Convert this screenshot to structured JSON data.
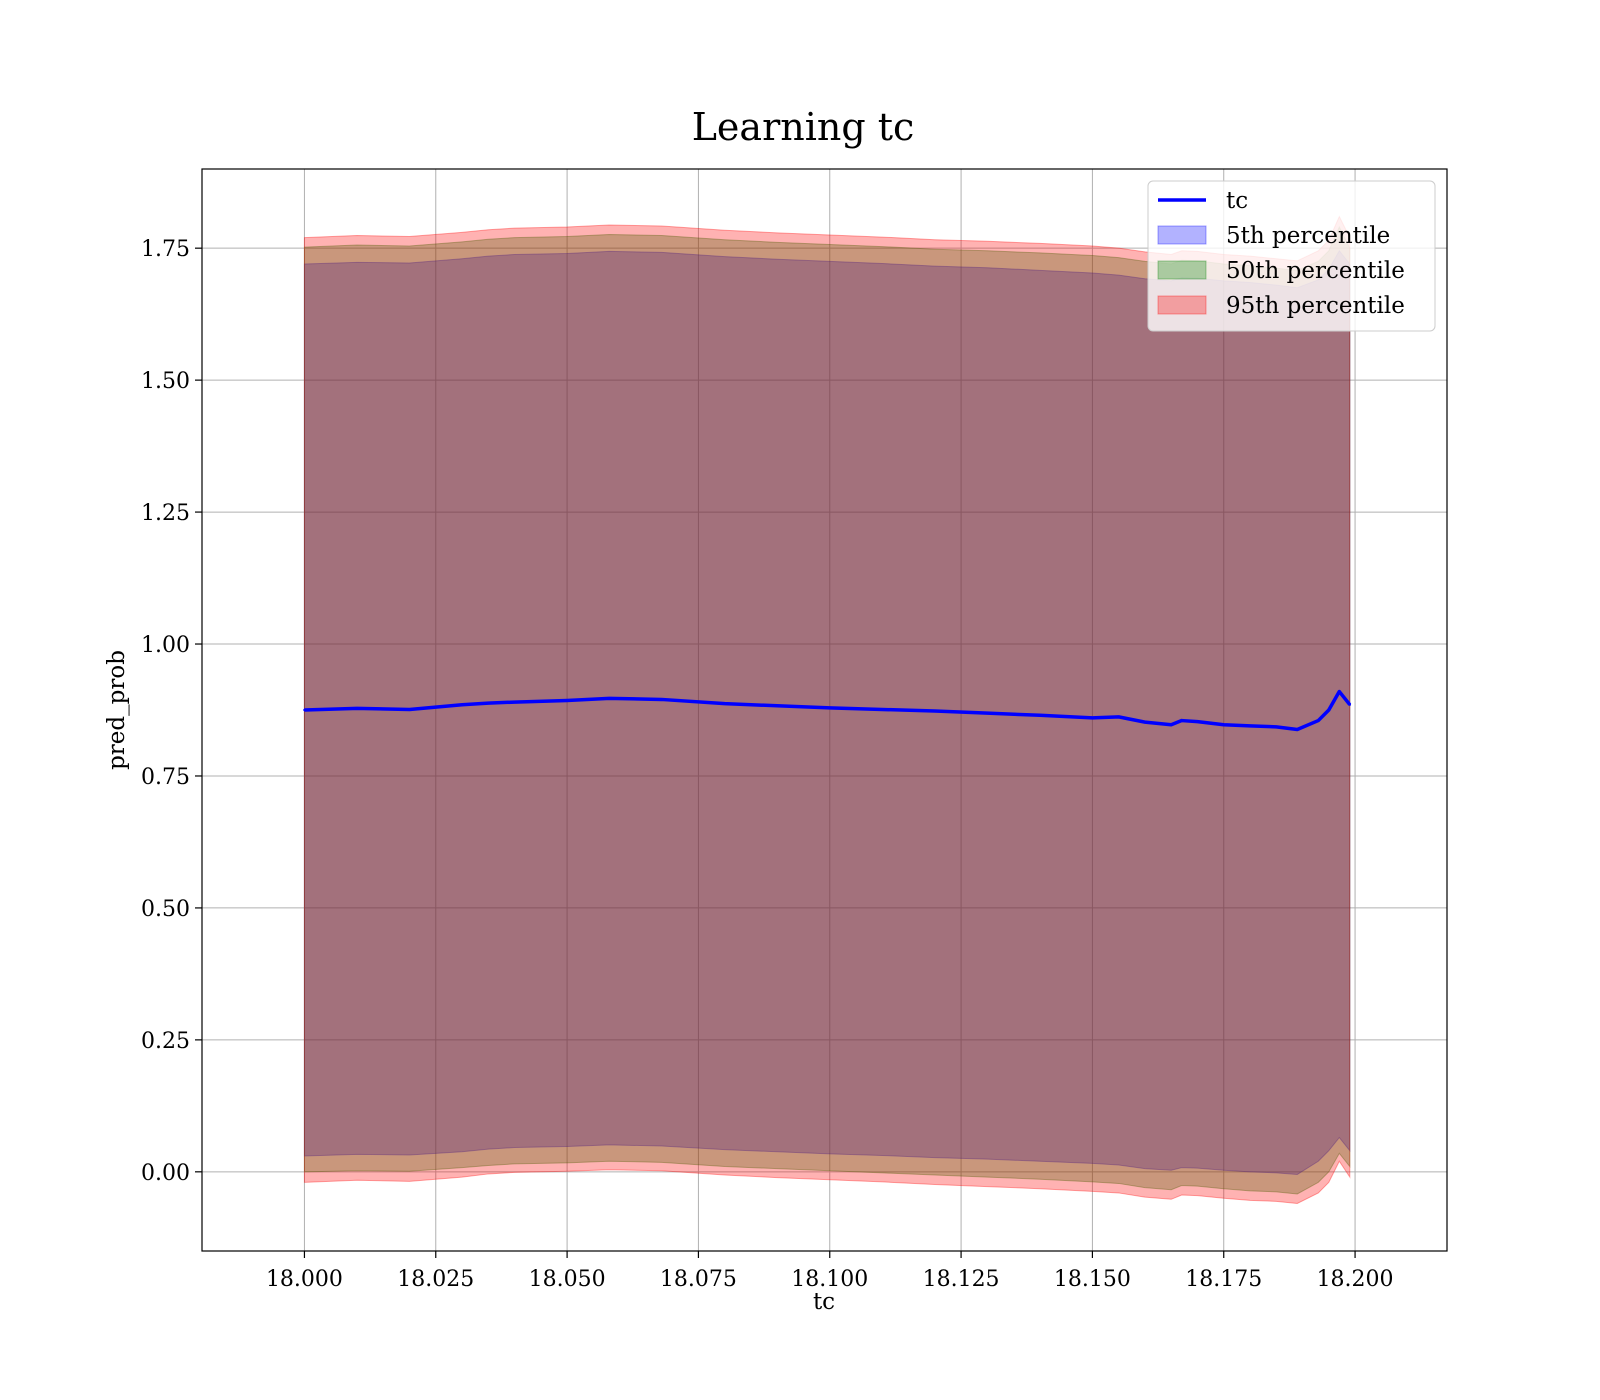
{
  "chart_data": {
    "type": "line",
    "title": "Learning tc",
    "xlabel": "tc",
    "ylabel": "pred_prob",
    "xlim": [
      17.9805,
      18.2175
    ],
    "ylim": [
      -0.15,
      1.9
    ],
    "x_ticks": [
      "18.000",
      "18.025",
      "18.050",
      "18.075",
      "18.100",
      "18.125",
      "18.150",
      "18.175",
      "18.200"
    ],
    "y_ticks": [
      "0.00",
      "0.25",
      "0.50",
      "0.75",
      "1.00",
      "1.25",
      "1.50",
      "1.75"
    ],
    "grid": true,
    "legend_position": "upper right",
    "colors": {
      "line": "#0000ff",
      "band5": "#0000ff",
      "band50": "#008000",
      "band95": "#ff0000"
    },
    "x": [
      18.0,
      18.01,
      18.02,
      18.03,
      18.035,
      18.04,
      18.05,
      18.058,
      18.068,
      18.08,
      18.09,
      18.1,
      18.11,
      18.12,
      18.13,
      18.14,
      18.15,
      18.155,
      18.16,
      18.165,
      18.167,
      18.17,
      18.175,
      18.18,
      18.185,
      18.189,
      18.193,
      18.195,
      18.197,
      18.199
    ],
    "series": [
      {
        "name": "tc",
        "kind": "line",
        "values": [
          0.875,
          0.878,
          0.876,
          0.885,
          0.888,
          0.89,
          0.893,
          0.897,
          0.895,
          0.887,
          0.883,
          0.879,
          0.876,
          0.873,
          0.869,
          0.865,
          0.86,
          0.862,
          0.852,
          0.847,
          0.855,
          0.853,
          0.847,
          0.845,
          0.843,
          0.838,
          0.855,
          0.875,
          0.91,
          0.885
        ]
      },
      {
        "name": "5th percentile",
        "kind": "band",
        "lower": [
          0.03,
          0.033,
          0.032,
          0.038,
          0.043,
          0.046,
          0.048,
          0.051,
          0.049,
          0.042,
          0.038,
          0.034,
          0.031,
          0.027,
          0.024,
          0.02,
          0.016,
          0.013,
          0.006,
          0.003,
          0.008,
          0.007,
          0.003,
          0.0,
          -0.002,
          -0.005,
          0.02,
          0.04,
          0.065,
          0.04
        ],
        "upper": [
          1.72,
          1.723,
          1.722,
          1.73,
          1.735,
          1.738,
          1.74,
          1.744,
          1.742,
          1.734,
          1.729,
          1.725,
          1.721,
          1.716,
          1.713,
          1.708,
          1.703,
          1.699,
          1.692,
          1.688,
          1.694,
          1.693,
          1.688,
          1.685,
          1.68,
          1.675,
          1.69,
          1.71,
          1.745,
          1.72
        ]
      },
      {
        "name": "50th percentile",
        "kind": "band",
        "lower": [
          0.0,
          0.002,
          0.001,
          0.008,
          0.012,
          0.015,
          0.017,
          0.02,
          0.018,
          0.01,
          0.006,
          0.002,
          -0.002,
          -0.006,
          -0.01,
          -0.014,
          -0.019,
          -0.022,
          -0.03,
          -0.034,
          -0.026,
          -0.027,
          -0.032,
          -0.036,
          -0.038,
          -0.042,
          -0.02,
          0.0,
          0.035,
          0.01
        ],
        "upper": [
          1.752,
          1.756,
          1.754,
          1.762,
          1.767,
          1.77,
          1.772,
          1.776,
          1.774,
          1.766,
          1.761,
          1.757,
          1.753,
          1.748,
          1.745,
          1.741,
          1.736,
          1.732,
          1.725,
          1.72,
          1.727,
          1.726,
          1.72,
          1.717,
          1.712,
          1.708,
          1.725,
          1.745,
          1.79,
          1.75
        ]
      },
      {
        "name": "95th percentile",
        "kind": "band",
        "lower": [
          -0.02,
          -0.016,
          -0.018,
          -0.01,
          -0.004,
          -0.001,
          0.001,
          0.004,
          0.002,
          -0.006,
          -0.011,
          -0.015,
          -0.019,
          -0.024,
          -0.028,
          -0.032,
          -0.037,
          -0.04,
          -0.048,
          -0.052,
          -0.044,
          -0.045,
          -0.05,
          -0.054,
          -0.056,
          -0.06,
          -0.04,
          -0.02,
          0.02,
          -0.01
        ],
        "upper": [
          1.77,
          1.774,
          1.772,
          1.78,
          1.785,
          1.788,
          1.79,
          1.794,
          1.792,
          1.784,
          1.779,
          1.775,
          1.771,
          1.766,
          1.763,
          1.759,
          1.754,
          1.75,
          1.743,
          1.738,
          1.745,
          1.744,
          1.738,
          1.735,
          1.73,
          1.726,
          1.745,
          1.765,
          1.81,
          1.77
        ]
      }
    ]
  }
}
